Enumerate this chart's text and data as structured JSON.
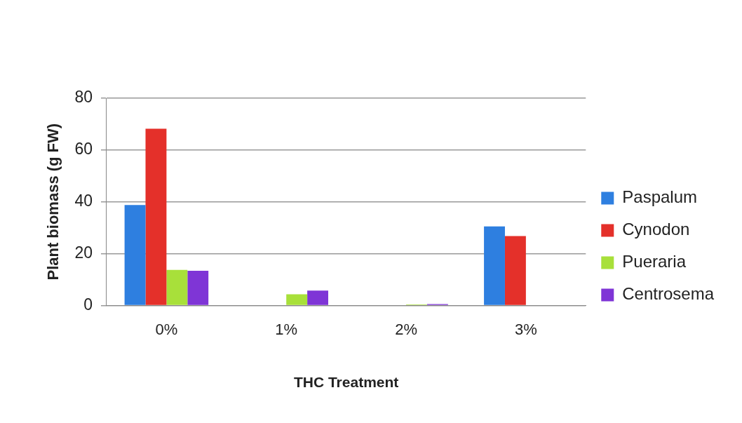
{
  "chart_data": {
    "type": "bar",
    "xlabel": "THC Treatment",
    "ylabel": "Plant biomass (g FW)",
    "categories": [
      "0%",
      "1%",
      "2%",
      "3%"
    ],
    "series": [
      {
        "name": "Paspalum",
        "color": "#2e7fe0",
        "values": [
          38.8,
          0,
          0,
          30.5
        ]
      },
      {
        "name": "Cynodon",
        "color": "#e4302a",
        "values": [
          68.2,
          0,
          0,
          26.8
        ]
      },
      {
        "name": "Pueraria",
        "color": "#a8e03a",
        "values": [
          13.7,
          4.3,
          0.4,
          0
        ]
      },
      {
        "name": "Centrosema",
        "color": "#7f35d6",
        "values": [
          13.4,
          5.7,
          0.5,
          0
        ]
      }
    ],
    "ylim": [
      0,
      80
    ],
    "yticks": [
      0,
      20,
      40,
      60,
      80
    ],
    "grid": "y",
    "legend": "right"
  }
}
